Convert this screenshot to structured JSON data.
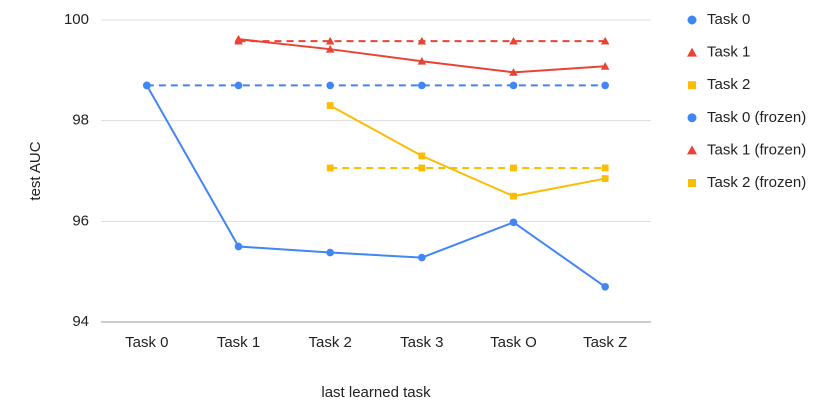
{
  "chart_data": {
    "type": "line",
    "x_label": "last learned task",
    "y_label": "test AUC",
    "categories": [
      "Task 0",
      "Task 1",
      "Task 2",
      "Task 3",
      "Task O",
      "Task Z"
    ],
    "ylim": [
      94,
      100
    ],
    "yticks": [
      94,
      96,
      98,
      100
    ],
    "grid": true,
    "legend": "right",
    "series": [
      {
        "name": "Task 0",
        "color": "#4285f4",
        "marker": "circle",
        "dashed": false,
        "values": [
          98.7,
          95.5,
          95.38,
          95.28,
          95.98,
          94.7
        ]
      },
      {
        "name": "Task 1",
        "color": "#ea4335",
        "marker": "triangle",
        "dashed": false,
        "values": [
          null,
          99.62,
          99.42,
          99.18,
          98.96,
          99.08
        ]
      },
      {
        "name": "Task 2",
        "color": "#fbbc04",
        "marker": "square",
        "dashed": false,
        "values": [
          null,
          null,
          98.3,
          97.3,
          96.5,
          96.85
        ]
      },
      {
        "name": "Task 0 (frozen)",
        "color": "#4285f4",
        "marker": "circle",
        "dashed": true,
        "values": [
          98.7,
          98.7,
          98.7,
          98.7,
          98.7,
          98.7
        ]
      },
      {
        "name": "Task 1 (frozen)",
        "color": "#ea4335",
        "marker": "triangle",
        "dashed": true,
        "values": [
          null,
          99.58,
          99.58,
          99.58,
          99.58,
          99.58
        ]
      },
      {
        "name": "Task 2 (frozen)",
        "color": "#fbbc04",
        "marker": "square",
        "dashed": true,
        "values": [
          null,
          null,
          97.06,
          97.06,
          97.06,
          97.06
        ]
      }
    ]
  }
}
